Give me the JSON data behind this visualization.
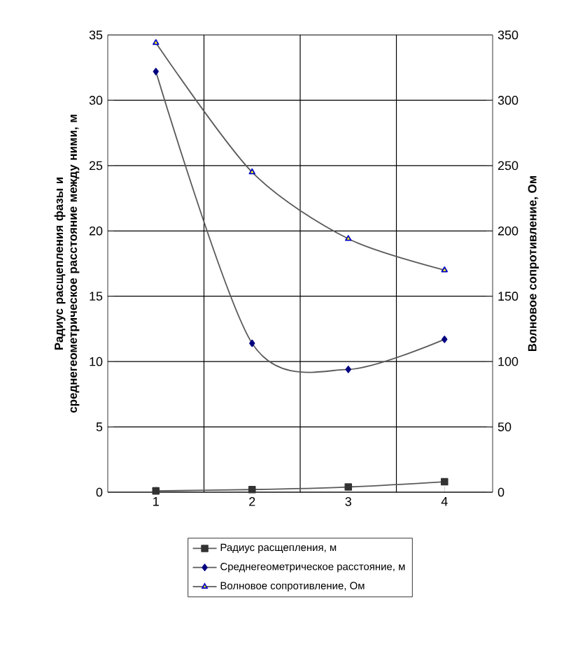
{
  "chart_data": {
    "type": "line",
    "categories": [
      "1",
      "2",
      "3",
      "4"
    ],
    "ylabel": "Радиус расщепления фазы и среднегеометрическое расстояние между ними, м",
    "y2label": "Волновое сопротивление, Ом",
    "ylim": [
      0,
      35
    ],
    "yticks": [
      0,
      5,
      10,
      15,
      20,
      25,
      30,
      35
    ],
    "y2lim": [
      0,
      350
    ],
    "y2ticks": [
      0,
      50,
      100,
      150,
      200,
      250,
      300,
      350
    ],
    "grid": true,
    "legend": "bottom",
    "series": [
      {
        "name": "Радиус расщепления, м",
        "color": "#333333",
        "marker": "square",
        "values": [
          0.1,
          0.2,
          0.4,
          0.8
        ]
      },
      {
        "name": "Среднегеометрическое расстояние, м",
        "color": "#000080",
        "marker": "diamond",
        "values": [
          32.2,
          11.4,
          9.4,
          11.7
        ]
      },
      {
        "name": "Волновое сопротивление, Ом",
        "color": "#ffff00",
        "marker": "triangle",
        "axis": "y2",
        "values": [
          344,
          245,
          194,
          170
        ]
      }
    ]
  }
}
